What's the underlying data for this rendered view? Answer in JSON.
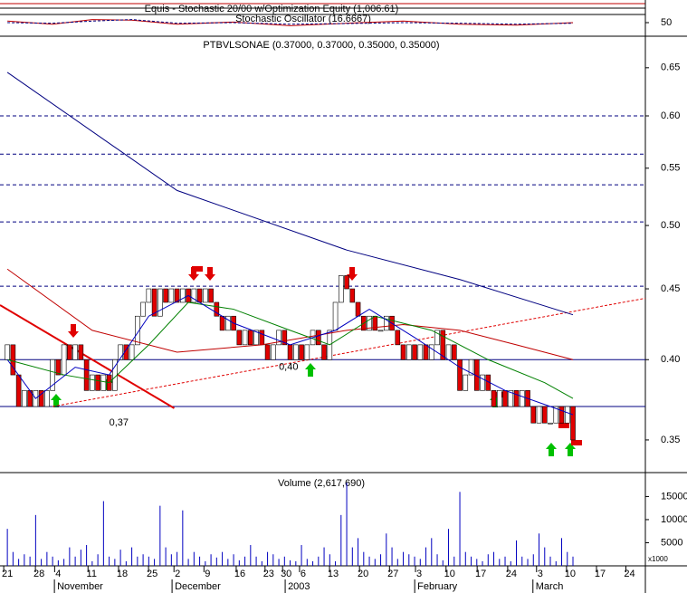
{
  "chart_data": [
    {
      "type": "line",
      "title": "Equis - Stochastic 20/00  w/Optimization Equity (1,006.61)",
      "subtitle": "Stochastic Oscillator (16.6667)",
      "xlim": [
        -1.3,
        112.8
      ],
      "ylim": [
        0,
        100
      ],
      "yticks": [
        50
      ],
      "series": [
        {
          "color": "#c00000",
          "x": [
            0,
            8,
            15,
            22,
            30,
            40,
            50,
            60,
            70,
            80,
            90,
            100
          ],
          "values": [
            55,
            45,
            60,
            58,
            45,
            52,
            40,
            48,
            55,
            45,
            42,
            50
          ]
        },
        {
          "color": "#000080",
          "x": [
            0,
            8,
            15,
            22,
            30,
            40,
            50,
            60,
            70,
            80,
            90,
            100
          ],
          "values": [
            50,
            48,
            55,
            60,
            48,
            50,
            45,
            47,
            50,
            48,
            45,
            48
          ]
        }
      ]
    },
    {
      "type": "candlestick",
      "title": "PTBVLSONAE (0.37000, 0.37000, 0.35000, 0.35000)",
      "log_scale": true,
      "xlim": [
        -1.3,
        112.8
      ],
      "ylim": [
        0.3315,
        0.685
      ],
      "yticks": [
        0.35,
        {
          "value": 0.4,
          "label": "0.40"
        },
        0.45,
        {
          "value": 0.5,
          "label": "0.50"
        },
        0.55,
        {
          "value": 0.6,
          "label": "0.60"
        },
        0.65
      ],
      "up_color": "#ffffff",
      "down_color": "#e00000",
      "open": [
        0.4,
        0.41,
        0.39,
        0.37,
        0.38,
        0.37,
        0.38,
        0.37,
        0.38,
        0.4,
        0.39,
        0.41,
        0.4,
        0.41,
        0.4,
        0.38,
        0.39,
        0.38,
        0.39,
        0.38,
        0.4,
        0.41,
        0.4,
        0.41,
        0.43,
        0.44,
        0.45,
        0.43,
        0.45,
        0.44,
        0.45,
        0.44,
        0.45,
        0.44,
        0.45,
        0.44,
        0.45,
        0.44,
        0.43,
        0.42,
        0.43,
        0.42,
        0.41,
        0.42,
        0.41,
        0.42,
        0.41,
        0.4,
        0.41,
        0.42,
        0.41,
        0.4,
        0.41,
        0.4,
        0.41,
        0.42,
        0.41,
        0.4,
        0.42,
        0.44,
        0.46,
        0.45,
        0.44,
        0.43,
        0.42,
        0.43,
        0.42,
        0.42,
        0.43,
        0.42,
        0.41,
        0.4,
        0.41,
        0.4,
        0.41,
        0.4,
        0.41,
        0.42,
        0.4,
        0.41,
        0.4,
        0.38,
        0.39,
        0.4,
        0.38,
        0.39,
        0.38,
        0.37,
        0.38,
        0.37,
        0.38,
        0.37,
        0.38,
        0.37,
        0.36,
        0.37,
        0.36,
        0.36,
        0.37,
        0.36,
        0.37
      ],
      "close": [
        0.41,
        0.39,
        0.37,
        0.38,
        0.37,
        0.38,
        0.37,
        0.38,
        0.4,
        0.39,
        0.41,
        0.4,
        0.41,
        0.4,
        0.38,
        0.39,
        0.38,
        0.39,
        0.38,
        0.4,
        0.41,
        0.4,
        0.41,
        0.43,
        0.44,
        0.45,
        0.43,
        0.45,
        0.44,
        0.45,
        0.44,
        0.45,
        0.44,
        0.45,
        0.44,
        0.45,
        0.44,
        0.43,
        0.42,
        0.43,
        0.42,
        0.41,
        0.42,
        0.41,
        0.42,
        0.41,
        0.4,
        0.41,
        0.42,
        0.41,
        0.4,
        0.41,
        0.4,
        0.41,
        0.42,
        0.41,
        0.4,
        0.42,
        0.44,
        0.46,
        0.45,
        0.44,
        0.43,
        0.42,
        0.43,
        0.42,
        0.42,
        0.43,
        0.42,
        0.41,
        0.4,
        0.41,
        0.4,
        0.41,
        0.4,
        0.41,
        0.42,
        0.4,
        0.41,
        0.4,
        0.38,
        0.39,
        0.4,
        0.38,
        0.39,
        0.38,
        0.37,
        0.38,
        0.37,
        0.38,
        0.37,
        0.38,
        0.37,
        0.36,
        0.37,
        0.36,
        0.36,
        0.37,
        0.36,
        0.37,
        0.35
      ],
      "overlays": [
        {
          "color": "#000080",
          "x": [
            0,
            30,
            60,
            80,
            100
          ],
          "values": [
            0.645,
            0.53,
            0.48,
            0.457,
            0.431
          ]
        },
        {
          "color": "#c00000",
          "x": [
            0,
            15,
            30,
            45,
            60,
            70,
            80,
            90,
            100
          ],
          "values": [
            0.465,
            0.42,
            0.405,
            0.41,
            0.42,
            0.424,
            0.42,
            0.41,
            0.4
          ]
        },
        {
          "color": "#008000",
          "x": [
            0,
            10,
            18,
            25,
            32,
            40,
            50,
            57,
            65,
            75,
            85,
            95,
            100
          ],
          "values": [
            0.4,
            0.39,
            0.385,
            0.41,
            0.44,
            0.435,
            0.42,
            0.41,
            0.43,
            0.42,
            0.4,
            0.385,
            0.375
          ]
        },
        {
          "color": "#0000c0",
          "x": [
            0,
            5,
            12,
            18,
            25,
            32,
            40,
            50,
            58,
            64,
            72,
            80,
            88,
            96,
            100
          ],
          "values": [
            0.4,
            0.375,
            0.395,
            0.39,
            0.43,
            0.445,
            0.425,
            0.41,
            0.42,
            0.435,
            0.415,
            0.395,
            0.38,
            0.37,
            0.365
          ]
        }
      ],
      "trendlines": [
        {
          "color": "#e00000",
          "dashed": true,
          "x": [
            8,
            112.8
          ],
          "values": [
            0.37,
            0.443
          ]
        },
        {
          "color": "#e00000",
          "dashed": false,
          "x": [
            -1.3,
            29.5
          ],
          "values": [
            0.438,
            0.369
          ]
        }
      ],
      "dashed_levels": [
        0.452,
        0.503,
        0.535,
        0.563,
        0.6
      ],
      "dashed_color": "#000080",
      "solid_levels": [
        0.4,
        0.37
      ],
      "solid_color": "#000080",
      "annotations": [
        {
          "text": "0,37",
          "x": 18,
          "y": 0.36
        },
        {
          "text": "0,40",
          "x": 48,
          "y": 0.395
        }
      ]
    },
    {
      "type": "bar",
      "title": "Volume (2,617,690)",
      "unit_label": "x1000",
      "color": "#0000c0",
      "xlim": [
        -1.3,
        112.8
      ],
      "ylim": [
        0,
        19000
      ],
      "yticks": [
        5000,
        10000,
        15000
      ],
      "values": [
        8000,
        3000,
        1500,
        2500,
        2000,
        11000,
        1500,
        3000,
        2000,
        1200,
        1500,
        4000,
        2000,
        3500,
        4500,
        1000,
        2500,
        14000,
        2000,
        1500,
        3500,
        1000,
        4000,
        2000,
        2500,
        2000,
        1500,
        13000,
        4000,
        2500,
        3000,
        12000,
        1500,
        3000,
        2000,
        1000,
        2500,
        1800,
        3000,
        1500,
        2500,
        1200,
        2000,
        4500,
        2000,
        1000,
        3000,
        2500,
        1500,
        2000,
        1200,
        1000,
        4500,
        1500,
        1000,
        2000,
        4000,
        2500,
        1000,
        11000,
        18000,
        4000,
        6000,
        3000,
        2000,
        1500,
        2500,
        7000,
        4000,
        1500,
        3000,
        2500,
        2000,
        1500,
        4000,
        6000,
        2500,
        1200,
        8000,
        2000,
        16000,
        3000,
        2000,
        1500,
        1000,
        2500,
        3000,
        1500,
        2000,
        1000,
        5500,
        2000,
        1500,
        2500,
        7000,
        4000,
        2000,
        1000,
        6000,
        3000,
        2000
      ],
      "xticks": [
        {
          "value": 0,
          "label": "21"
        },
        {
          "value": 5.6,
          "label": "28"
        },
        {
          "value": 9,
          "label": "4"
        },
        {
          "value": 14.9,
          "label": "11"
        },
        {
          "value": 20.3,
          "label": "18"
        },
        {
          "value": 25.6,
          "label": "25"
        },
        {
          "value": 30.1,
          "label": "2"
        },
        {
          "value": 35.4,
          "label": "9"
        },
        {
          "value": 41.1,
          "label": "16"
        },
        {
          "value": 46.2,
          "label": "23"
        },
        {
          "value": 49.3,
          "label": "30"
        },
        {
          "value": 52.3,
          "label": "6"
        },
        {
          "value": 57.6,
          "label": "13"
        },
        {
          "value": 62.9,
          "label": "20"
        },
        {
          "value": 68.2,
          "label": "27"
        },
        {
          "value": 72.8,
          "label": "3"
        },
        {
          "value": 78.2,
          "label": "10"
        },
        {
          "value": 83.7,
          "label": "17"
        },
        {
          "value": 89.1,
          "label": "24"
        },
        {
          "value": 94.2,
          "label": "3"
        },
        {
          "value": 99.5,
          "label": "10"
        },
        {
          "value": 104.8,
          "label": "17"
        },
        {
          "value": 110,
          "label": "24"
        }
      ],
      "month_labels": [
        {
          "value": 8.8,
          "label": "November"
        },
        {
          "value": 29.6,
          "label": "December"
        },
        {
          "value": 49.6,
          "label": "2003"
        },
        {
          "value": 72.5,
          "label": "February"
        },
        {
          "value": 93.4,
          "label": "March"
        }
      ]
    }
  ]
}
